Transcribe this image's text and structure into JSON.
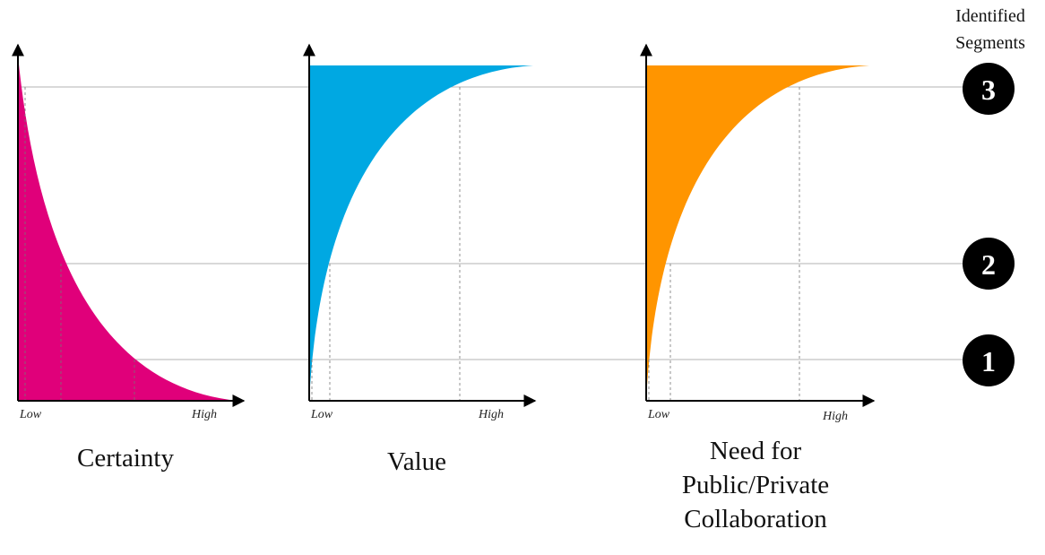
{
  "segments_header": [
    "Identified",
    "Segments"
  ],
  "segments": [
    {
      "label": "3"
    },
    {
      "label": "2"
    },
    {
      "label": "1"
    }
  ],
  "panels": [
    {
      "title": [
        "Certainty"
      ],
      "low_label": "Low",
      "high_label": "High",
      "fill_color": "#E0007A",
      "curve": "decreasing"
    },
    {
      "title": [
        "Value"
      ],
      "low_label": "Low",
      "high_label": "High",
      "fill_color": "#00A8E2",
      "curve": "increasing"
    },
    {
      "title": [
        "Need for",
        "Public/Private",
        "Collaboration"
      ],
      "low_label": "Low",
      "high_label": "High",
      "fill_color": "#FF9500",
      "curve": "increasing"
    }
  ]
}
